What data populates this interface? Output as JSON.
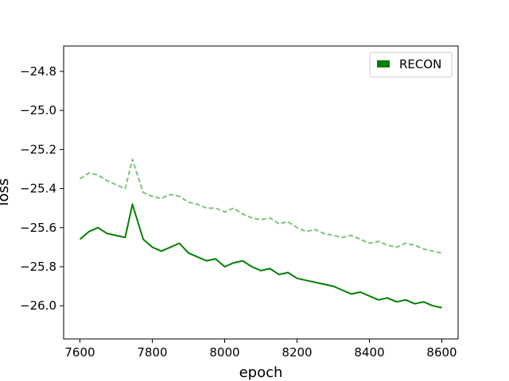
{
  "chart_data": {
    "type": "line",
    "xlabel": "epoch",
    "ylabel": "loss",
    "xlim": [
      7555,
      8645
    ],
    "ylim": [
      -26.17,
      -24.67
    ],
    "x_ticks": [
      7600,
      7800,
      8000,
      8200,
      8400,
      8600
    ],
    "x_tick_labels": [
      "7600",
      "7800",
      "8000",
      "8200",
      "8400",
      "8600"
    ],
    "y_ticks": [
      -24.8,
      -25.0,
      -25.2,
      -25.4,
      -25.6,
      -25.8,
      -26.0
    ],
    "y_tick_labels": [
      "−24.8",
      "−25.0",
      "−25.2",
      "−25.4",
      "−25.6",
      "−25.8",
      "−26.0"
    ],
    "grid": false,
    "legend": {
      "position": "top-right",
      "entries": [
        {
          "label": "RECON",
          "color": "#008000"
        }
      ]
    },
    "series": [
      {
        "name": "RECON",
        "style": "solid",
        "color": "#008000",
        "x": [
          7600,
          7625,
          7650,
          7675,
          7700,
          7725,
          7745,
          7775,
          7800,
          7825,
          7850,
          7875,
          7900,
          7925,
          7950,
          7975,
          8000,
          8025,
          8050,
          8075,
          8100,
          8125,
          8150,
          8175,
          8200,
          8225,
          8250,
          8275,
          8300,
          8325,
          8350,
          8375,
          8400,
          8425,
          8450,
          8475,
          8500,
          8525,
          8550,
          8575,
          8600
        ],
        "y": [
          -25.66,
          -25.62,
          -25.6,
          -25.63,
          -25.64,
          -25.65,
          -25.48,
          -25.66,
          -25.7,
          -25.72,
          -25.7,
          -25.68,
          -25.73,
          -25.75,
          -25.77,
          -25.76,
          -25.8,
          -25.78,
          -25.77,
          -25.8,
          -25.82,
          -25.81,
          -25.84,
          -25.83,
          -25.86,
          -25.87,
          -25.88,
          -25.89,
          -25.9,
          -25.92,
          -25.94,
          -25.93,
          -25.95,
          -25.97,
          -25.96,
          -25.98,
          -25.97,
          -25.99,
          -25.98,
          -26.0,
          -26.01
        ]
      },
      {
        "name": "",
        "style": "dashed",
        "color": "#7fc27f",
        "x": [
          7600,
          7625,
          7650,
          7675,
          7700,
          7725,
          7745,
          7775,
          7800,
          7825,
          7850,
          7875,
          7900,
          7925,
          7950,
          7975,
          8000,
          8025,
          8050,
          8075,
          8100,
          8125,
          8150,
          8175,
          8200,
          8225,
          8250,
          8275,
          8300,
          8325,
          8350,
          8375,
          8400,
          8425,
          8450,
          8475,
          8500,
          8525,
          8550,
          8575,
          8600
        ],
        "y": [
          -25.35,
          -25.32,
          -25.33,
          -25.36,
          -25.38,
          -25.4,
          -25.25,
          -25.42,
          -25.44,
          -25.45,
          -25.43,
          -25.44,
          -25.47,
          -25.48,
          -25.5,
          -25.5,
          -25.52,
          -25.5,
          -25.53,
          -25.55,
          -25.56,
          -25.55,
          -25.58,
          -25.57,
          -25.6,
          -25.62,
          -25.61,
          -25.63,
          -25.64,
          -25.65,
          -25.64,
          -25.66,
          -25.68,
          -25.67,
          -25.69,
          -25.7,
          -25.68,
          -25.69,
          -25.71,
          -25.72,
          -25.73
        ]
      }
    ]
  }
}
